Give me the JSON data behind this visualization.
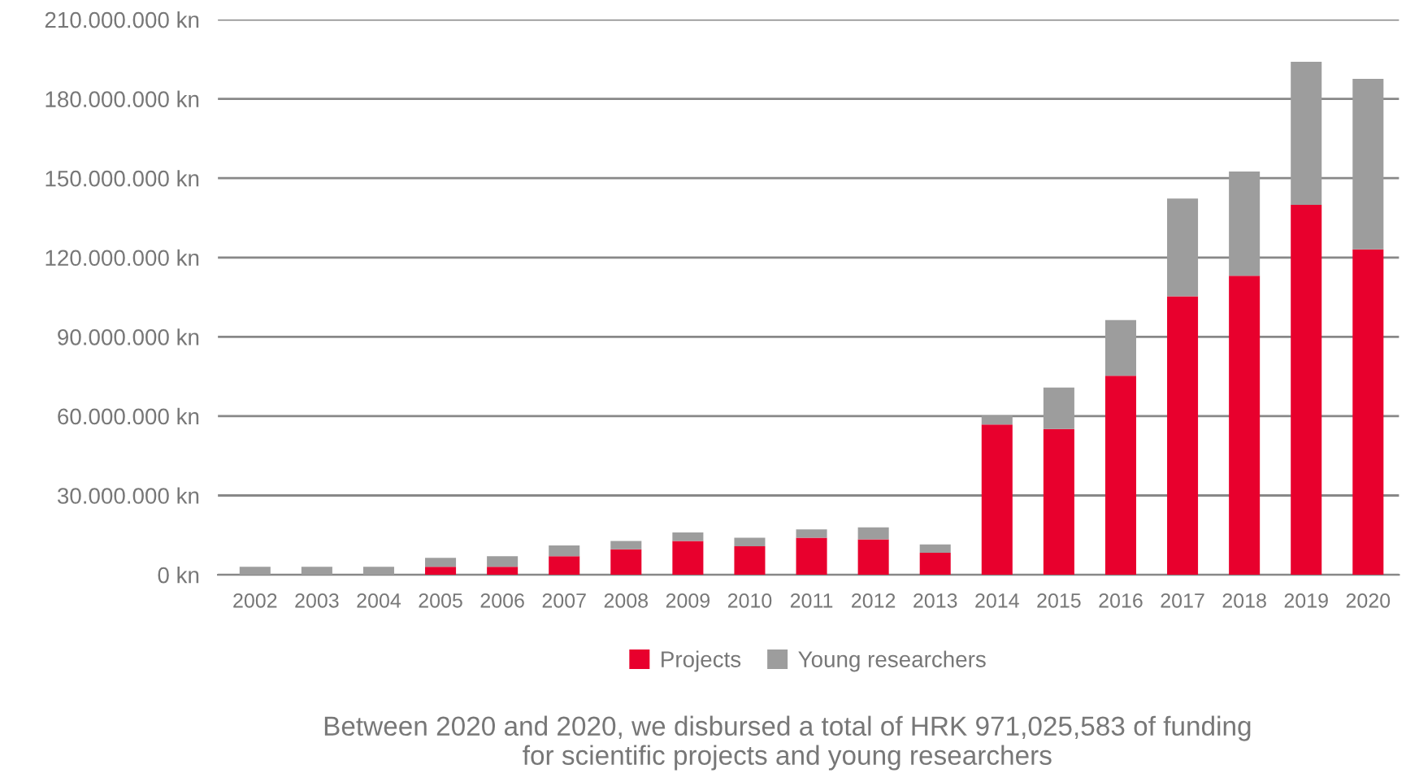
{
  "chart_data": {
    "type": "bar",
    "stacked": true,
    "categories": [
      "2002",
      "2003",
      "2004",
      "2005",
      "2006",
      "2007",
      "2008",
      "2009",
      "2010",
      "2011",
      "2012",
      "2013",
      "2014",
      "2015",
      "2016",
      "2017",
      "2018",
      "2019",
      "2020"
    ],
    "series": [
      {
        "name": "Projects",
        "color": "#e8002d",
        "values": [
          0,
          0,
          0,
          3000000,
          3000000,
          7000000,
          9600000,
          12800000,
          10800000,
          14000000,
          13400000,
          8300000,
          56800000,
          55100000,
          75300000,
          105300000,
          113100000,
          139900000,
          123100000
        ]
      },
      {
        "name": "Young researchers",
        "color": "#9d9d9d",
        "values": [
          3000000,
          3000000,
          3000000,
          3400000,
          4000000,
          4100000,
          3200000,
          3200000,
          3200000,
          3200000,
          4500000,
          3200000,
          3400000,
          15700000,
          21000000,
          37000000,
          39400000,
          54100000,
          64500000
        ]
      }
    ],
    "ylim": [
      0,
      210000000
    ],
    "yticks": [
      {
        "value": 0,
        "label": "0 kn"
      },
      {
        "value": 30000000,
        "label": "30.000.000 kn"
      },
      {
        "value": 60000000,
        "label": "60.000.000 kn"
      },
      {
        "value": 90000000,
        "label": "90.000.000 kn"
      },
      {
        "value": 120000000,
        "label": "120.000.000 kn"
      },
      {
        "value": 150000000,
        "label": "150.000.000 kn"
      },
      {
        "value": 180000000,
        "label": "180.000.000 kn"
      },
      {
        "value": 210000000,
        "label": "210.000.000 kn"
      }
    ],
    "grid": "y",
    "legend": "bottom",
    "annotations": [
      "Between 2020 and 2020, we disbursed a total of HRK 971,025,583 of funding\nfor scientific projects and young researchers"
    ]
  }
}
